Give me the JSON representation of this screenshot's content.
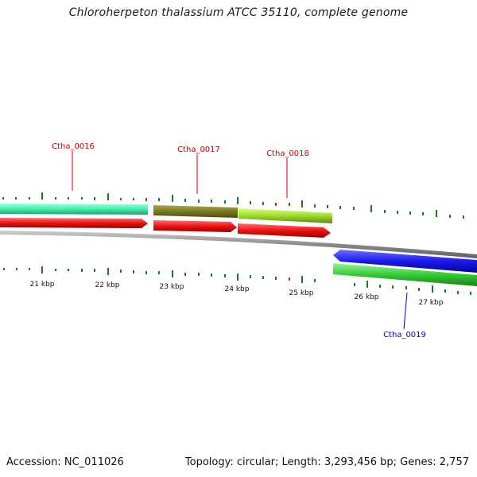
{
  "title": "Chloroherpeton thalassium ATCC 35110, complete genome",
  "footer": {
    "accession_label": "Accession:",
    "accession": "NC_011026",
    "info": "Topology: circular; Length: 3,293,456 bp; Genes: 2,757"
  },
  "colors": {
    "label_red": "#cc0000",
    "label_blue": "#0000cc",
    "tick": "#1a7a1a",
    "backbone": "#808080"
  },
  "scale_labels": [
    "21 kbp",
    "22 kbp",
    "23 kbp",
    "24 kbp",
    "25 kbp",
    "26 kbp",
    "27 kbp"
  ],
  "genes": [
    {
      "name": "Ctha_0016",
      "strand": "+",
      "feature_color": "#3ff0a8",
      "cds_color": "#ee1111",
      "label_color": "#cc0000"
    },
    {
      "name": "Ctha_0017",
      "strand": "+",
      "feature_color": "#7a7a1e",
      "cds_color": "#ee1111",
      "label_color": "#cc0000"
    },
    {
      "name": "Ctha_0018",
      "strand": "+",
      "feature_color": "#9edc28",
      "cds_color": "#ee1111",
      "label_color": "#cc0000"
    },
    {
      "name": "Ctha_0019",
      "strand": "-",
      "feature_color": "#33cc33",
      "cds_color": "#1a1aee",
      "label_color": "#0000cc"
    }
  ]
}
